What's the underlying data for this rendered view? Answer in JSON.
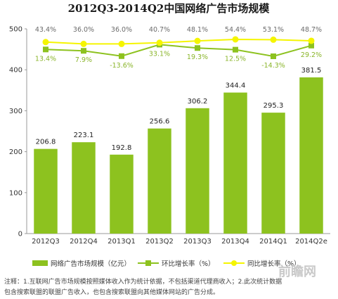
{
  "chart_data": {
    "type": "bar",
    "title": "2012Q3-2014Q2中国网络广告市场规模",
    "categories": [
      "2012Q3",
      "2012Q4",
      "2013Q1",
      "2013Q2",
      "2013Q3",
      "2013Q4",
      "2014Q1",
      "2014Q2e"
    ],
    "ylim": [
      0,
      500
    ],
    "yticks": [
      0,
      100,
      200,
      300,
      400,
      500
    ],
    "series": [
      {
        "name": "网络广告市场规模（亿元）",
        "type": "bar",
        "color": "#8dc21f",
        "values": [
          206.8,
          223.1,
          192.8,
          256.6,
          306.2,
          344.4,
          295.3,
          381.5
        ],
        "labels": [
          "206.8",
          "223.1",
          "192.8",
          "256.6",
          "306.2",
          "344.4",
          "295.3",
          "381.5"
        ]
      },
      {
        "name": "环比增长率（%）",
        "type": "line",
        "color": "#8dc21f",
        "values": [
          13.4,
          7.9,
          -13.6,
          33.1,
          19.3,
          12.5,
          -14.3,
          29.2
        ],
        "labels": [
          "13.4%",
          "7.9%",
          "-13.6%",
          "33.1%",
          "19.3%",
          "12.5%",
          "-14.3%",
          "29.2%"
        ]
      },
      {
        "name": "同比增长率（%）",
        "type": "line",
        "color": "#f5f500",
        "values": [
          43.4,
          36.0,
          36.0,
          40.7,
          48.1,
          54.4,
          53.1,
          48.7
        ],
        "labels": [
          "43.4%",
          "36.0%",
          "36.0%",
          "40.7%",
          "48.1%",
          "54.4%",
          "53.1%",
          "48.7%"
        ]
      }
    ],
    "grid": false,
    "legend": "bottom"
  },
  "note": {
    "line1": "注释：1.互联网广告市场规模按照媒体收入作为统计依据，不包括渠道代理商收入；2.此次统计数据",
    "line2": "包含搜索联盟的联盟广告收入，也包含搜索联盟向其他媒体网站的广告分成。"
  },
  "watermark": "前瞻网",
  "colors": {
    "bar": "#8dc21f",
    "qoq_line": "#8dc21f",
    "yoy_line": "#f5f500",
    "axis": "#999999"
  }
}
